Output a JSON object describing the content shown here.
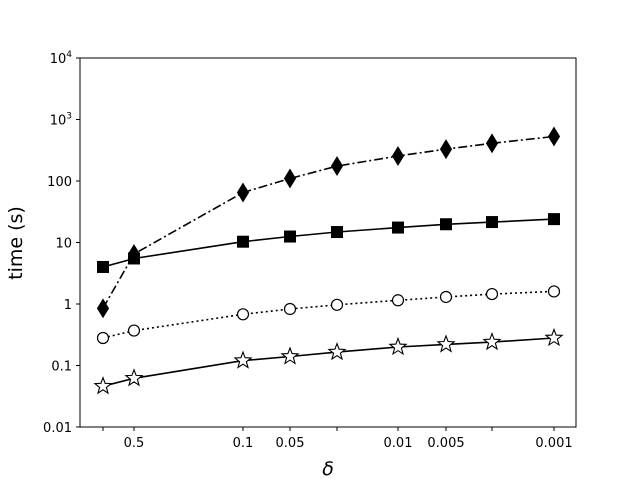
{
  "chart_data": {
    "type": "line",
    "title": "",
    "xlabel": "δ",
    "ylabel": "time (s)",
    "y_scale": "log",
    "ylim": [
      0.01,
      10000
    ],
    "grid": false,
    "legend": "none",
    "x": [
      0.75,
      0.5,
      0.1,
      0.05,
      0.025,
      0.01,
      0.005,
      0.0025,
      0.001
    ],
    "x_tick_positions": [
      0.75,
      0.5,
      0.1,
      0.05,
      0.025,
      0.01,
      0.005,
      0.0025,
      0.001
    ],
    "x_tick_labels": [
      "",
      "0.5",
      "0.1",
      "0.05",
      "",
      "0.01",
      "0.005",
      "",
      "0.001"
    ],
    "y_ticks": [
      {
        "value": 0.01,
        "label": "0.01"
      },
      {
        "value": 0.1,
        "label": "0.1"
      },
      {
        "value": 1,
        "label": "1"
      },
      {
        "value": 10,
        "label": "10"
      },
      {
        "value": 100,
        "label": "100"
      },
      {
        "value": 1000,
        "base": "10",
        "exp": "3"
      },
      {
        "value": 10000,
        "base": "10",
        "exp": "4"
      }
    ],
    "series": [
      {
        "marker": "diamond",
        "line_style": "dashdot",
        "color": "#000000",
        "values": [
          0.85,
          6.5,
          65,
          110,
          175,
          255,
          330,
          410,
          530
        ]
      },
      {
        "marker": "square",
        "line_style": "solid",
        "color": "#000000",
        "values": [
          4.0,
          5.5,
          10.3,
          12.5,
          14.8,
          17.5,
          19.8,
          21.5,
          24.0
        ]
      },
      {
        "marker": "circle-open",
        "line_style": "dotted",
        "color": "#000000",
        "values": [
          0.28,
          0.37,
          0.68,
          0.83,
          0.97,
          1.15,
          1.3,
          1.45,
          1.6
        ]
      },
      {
        "marker": "star-open",
        "line_style": "solid",
        "color": "#000000",
        "values": [
          0.046,
          0.062,
          0.12,
          0.14,
          0.165,
          0.2,
          0.22,
          0.24,
          0.28
        ]
      }
    ]
  }
}
